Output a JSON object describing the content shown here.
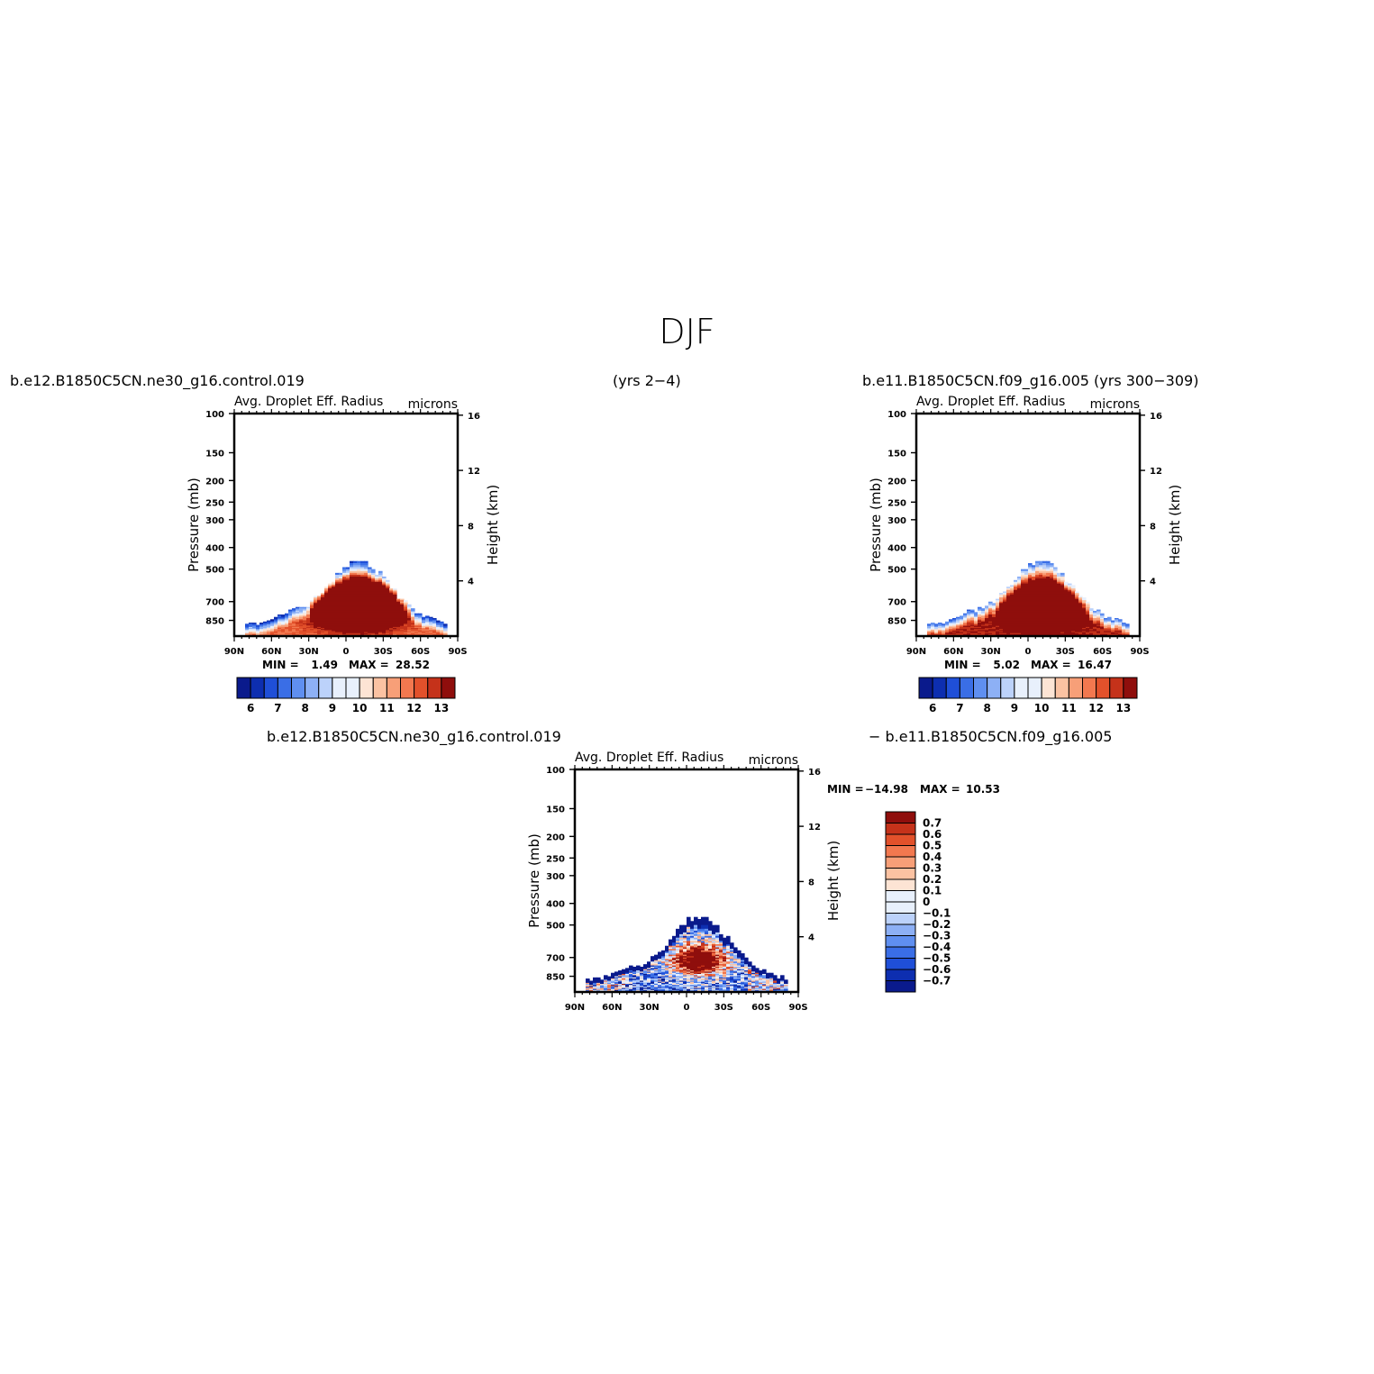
{
  "title": "DJF",
  "captions": {
    "case1": "b.e12.B1850C5CN.ne30_g16.control.019",
    "case1_years": "(yrs 2−4)",
    "case2": "b.e11.B1850C5CN.f09_g16.005 (yrs 300−309)",
    "diff_left": "b.e12.B1850C5CN.ne30_g16.control.019",
    "diff_right": "−  b.e11.B1850C5CN.f09_g16.005"
  },
  "colors": {
    "palette": [
      "#0a1a8c",
      "#0d2eb0",
      "#1f4fd8",
      "#3a6ee6",
      "#5f8ff0",
      "#8db0f5",
      "#bcd2fa",
      "#e8f0fc",
      "#fde4d4",
      "#fbc2a2",
      "#f79f78",
      "#f2784f",
      "#e2512b",
      "#c5321a",
      "#8f0e0c"
    ]
  },
  "chart_data": [
    {
      "type": "heatmap",
      "title": "Avg. Droplet Eff. Radius",
      "units": "microns",
      "ylabel": "Pressure (mb)",
      "y2label": "Height (km)",
      "x_ticks": [
        "90N",
        "60N",
        "30N",
        "0",
        "30S",
        "60S",
        "90S"
      ],
      "y_ticks": [
        100,
        150,
        200,
        250,
        300,
        400,
        500,
        700,
        850
      ],
      "y2_ticks": [
        16,
        12,
        8,
        4
      ],
      "min_text": "MIN =",
      "min_value": "1.49",
      "max_text": "MAX =",
      "max_value": "28.52",
      "colorbar_labels": [
        "6",
        "7",
        "8",
        "9",
        "10",
        "11",
        "12",
        "13"
      ],
      "colorbar_levels": [
        5.5,
        6,
        6.5,
        7,
        7.5,
        8,
        8.5,
        9,
        9.5,
        10,
        10.5,
        11,
        11.5,
        12,
        12.5,
        13,
        13.5
      ],
      "field": {
        "baseline": 6,
        "peak": 28.5,
        "core_lat": -10,
        "core_p": 730
      }
    },
    {
      "type": "heatmap",
      "title": "Avg. Droplet Eff. Radius",
      "units": "microns",
      "ylabel": "Pressure (mb)",
      "y2label": "Height (km)",
      "x_ticks": [
        "90N",
        "60N",
        "30N",
        "0",
        "30S",
        "60S",
        "90S"
      ],
      "y_ticks": [
        100,
        150,
        200,
        250,
        300,
        400,
        500,
        700,
        850
      ],
      "y2_ticks": [
        16,
        12,
        8,
        4
      ],
      "min_text": "MIN =",
      "min_value": "5.02",
      "max_text": "MAX =",
      "max_value": "16.47",
      "colorbar_labels": [
        "6",
        "7",
        "8",
        "9",
        "10",
        "11",
        "12",
        "13"
      ],
      "colorbar_levels": [
        5.5,
        6,
        6.5,
        7,
        7.5,
        8,
        8.5,
        9,
        9.5,
        10,
        10.5,
        11,
        11.5,
        12,
        12.5,
        13,
        13.5
      ],
      "field": {
        "baseline": 7,
        "peak": 16.5,
        "core_lat": -12,
        "core_p": 720
      }
    },
    {
      "type": "heatmap",
      "title": "Avg. Droplet Eff. Radius",
      "units": "microns",
      "ylabel": "Pressure (mb)",
      "y2label": "Height (km)",
      "x_ticks": [
        "90N",
        "60N",
        "30N",
        "0",
        "30S",
        "60S",
        "90S"
      ],
      "y_ticks": [
        100,
        150,
        200,
        250,
        300,
        400,
        500,
        700,
        850
      ],
      "y2_ticks": [
        16,
        12,
        8,
        4
      ],
      "min_text": "MIN =",
      "min_value": "−14.98",
      "max_text": "MAX =",
      "max_value": "10.53",
      "colorbar_labels": [
        "0.7",
        "0.6",
        "0.5",
        "0.4",
        "0.3",
        "0.2",
        "0.1",
        "0",
        "−0.1",
        "−0.2",
        "−0.3",
        "−0.4",
        "−0.5",
        "−0.6",
        "−0.7"
      ],
      "colorbar_levels": [
        -0.7,
        -0.6,
        -0.5,
        -0.4,
        -0.3,
        -0.2,
        -0.1,
        0,
        0.1,
        0.2,
        0.3,
        0.4,
        0.5,
        0.6,
        0.7
      ]
    }
  ]
}
